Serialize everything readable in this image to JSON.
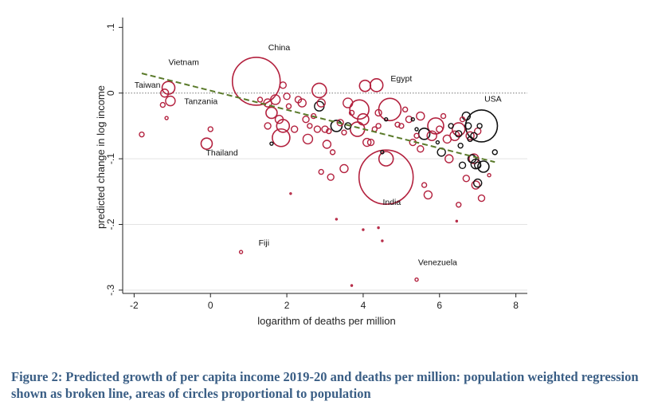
{
  "chart_data": {
    "type": "scatter",
    "xlabel": "logarithm of deaths per million",
    "ylabel": "predicted change in log income",
    "xlim": [
      -2.3,
      8.3
    ],
    "ylim": [
      -0.305,
      0.115
    ],
    "x_ticks": [
      {
        "value": -2,
        "label": "-2"
      },
      {
        "value": 0,
        "label": "0"
      },
      {
        "value": 2,
        "label": "2"
      },
      {
        "value": 4,
        "label": "4"
      },
      {
        "value": 6,
        "label": "6"
      },
      {
        "value": 8,
        "label": "8"
      }
    ],
    "y_ticks": [
      {
        "value": 0.1,
        "label": ".1"
      },
      {
        "value": 0,
        "label": "0"
      },
      {
        "value": -0.1,
        "label": "-.1"
      },
      {
        "value": -0.2,
        "label": "-.2"
      },
      {
        "value": -0.3,
        "label": "-.3"
      }
    ],
    "grid_y": [
      -0.1,
      -0.2,
      -0.3
    ],
    "reference_line_y": 0,
    "regression_line": {
      "style": "dashed",
      "color": "#5a7a2a",
      "x": [
        -1.8,
        7.45
      ],
      "y": [
        0.03,
        -0.105
      ]
    },
    "annotations": [
      {
        "text": "China",
        "x": 1.8,
        "y": 0.065
      },
      {
        "text": "Vietnam",
        "x": -0.7,
        "y": 0.043
      },
      {
        "text": "Taiwan",
        "x": -1.65,
        "y": 0.008
      },
      {
        "text": "Tanzania",
        "x": -0.25,
        "y": -0.017
      },
      {
        "text": "Thailand",
        "x": 0.3,
        "y": -0.095
      },
      {
        "text": "Egypt",
        "x": 5.0,
        "y": 0.018
      },
      {
        "text": "USA",
        "x": 7.4,
        "y": -0.013
      },
      {
        "text": "India",
        "x": 4.75,
        "y": -0.17
      },
      {
        "text": "Fiji",
        "x": 1.4,
        "y": -0.232
      },
      {
        "text": "Venezuela",
        "x": 5.95,
        "y": -0.262
      }
    ],
    "points": [
      {
        "x": 1.2,
        "y": 0.018,
        "r": 30,
        "c": "red"
      },
      {
        "x": 4.6,
        "y": -0.128,
        "r": 34,
        "c": "red"
      },
      {
        "x": -1.1,
        "y": 0.008,
        "r": 8,
        "c": "red"
      },
      {
        "x": -1.2,
        "y": 0.0,
        "r": 5,
        "c": "red"
      },
      {
        "x": -1.05,
        "y": -0.012,
        "r": 6,
        "c": "red"
      },
      {
        "x": -1.25,
        "y": -0.018,
        "r": 3,
        "c": "red"
      },
      {
        "x": -1.15,
        "y": -0.038,
        "r": 2,
        "c": "red"
      },
      {
        "x": -1.8,
        "y": -0.063,
        "r": 3,
        "c": "red"
      },
      {
        "x": 0.0,
        "y": -0.055,
        "r": 3,
        "c": "red"
      },
      {
        "x": -0.1,
        "y": -0.077,
        "r": 7,
        "c": "red"
      },
      {
        "x": 0.8,
        "y": -0.242,
        "r": 2,
        "c": "red"
      },
      {
        "x": 1.3,
        "y": -0.01,
        "r": 3,
        "c": "red"
      },
      {
        "x": 1.5,
        "y": -0.015,
        "r": 5,
        "c": "red"
      },
      {
        "x": 1.6,
        "y": -0.03,
        "r": 7,
        "c": "red"
      },
      {
        "x": 1.5,
        "y": -0.05,
        "r": 4,
        "c": "red"
      },
      {
        "x": 1.7,
        "y": -0.01,
        "r": 6,
        "c": "red"
      },
      {
        "x": 1.9,
        "y": 0.012,
        "r": 4,
        "c": "red"
      },
      {
        "x": 1.8,
        "y": -0.04,
        "r": 5,
        "c": "red"
      },
      {
        "x": 1.85,
        "y": -0.068,
        "r": 11,
        "c": "red"
      },
      {
        "x": 1.9,
        "y": -0.05,
        "r": 8,
        "c": "red"
      },
      {
        "x": 2.0,
        "y": -0.005,
        "r": 4,
        "c": "red"
      },
      {
        "x": 2.05,
        "y": -0.02,
        "r": 3,
        "c": "red"
      },
      {
        "x": 2.2,
        "y": -0.055,
        "r": 4,
        "c": "red"
      },
      {
        "x": 2.3,
        "y": -0.01,
        "r": 4,
        "c": "red"
      },
      {
        "x": 2.4,
        "y": -0.015,
        "r": 5,
        "c": "red"
      },
      {
        "x": 2.5,
        "y": -0.04,
        "r": 4,
        "c": "red"
      },
      {
        "x": 2.6,
        "y": -0.05,
        "r": 3,
        "c": "red"
      },
      {
        "x": 2.55,
        "y": -0.07,
        "r": 6,
        "c": "red"
      },
      {
        "x": 2.7,
        "y": -0.035,
        "r": 3,
        "c": "red"
      },
      {
        "x": 2.8,
        "y": -0.055,
        "r": 4,
        "c": "red"
      },
      {
        "x": 2.85,
        "y": 0.004,
        "r": 9,
        "c": "red"
      },
      {
        "x": 2.9,
        "y": -0.015,
        "r": 5,
        "c": "red"
      },
      {
        "x": 3.0,
        "y": -0.055,
        "r": 4,
        "c": "red"
      },
      {
        "x": 3.05,
        "y": -0.078,
        "r": 5,
        "c": "red"
      },
      {
        "x": 3.1,
        "y": -0.058,
        "r": 3,
        "c": "red"
      },
      {
        "x": 3.2,
        "y": -0.09,
        "r": 3,
        "c": "red"
      },
      {
        "x": 2.9,
        "y": -0.12,
        "r": 3,
        "c": "red"
      },
      {
        "x": 3.15,
        "y": -0.128,
        "r": 4,
        "c": "red"
      },
      {
        "x": 3.4,
        "y": -0.045,
        "r": 4,
        "c": "red"
      },
      {
        "x": 3.5,
        "y": -0.06,
        "r": 3,
        "c": "red"
      },
      {
        "x": 3.6,
        "y": -0.015,
        "r": 6,
        "c": "red"
      },
      {
        "x": 3.7,
        "y": -0.03,
        "r": 3,
        "c": "red"
      },
      {
        "x": 3.5,
        "y": -0.115,
        "r": 5,
        "c": "red"
      },
      {
        "x": 3.9,
        "y": -0.025,
        "r": 12,
        "c": "red"
      },
      {
        "x": 3.85,
        "y": -0.055,
        "r": 9,
        "c": "red"
      },
      {
        "x": 4.0,
        "y": -0.04,
        "r": 7,
        "c": "red"
      },
      {
        "x": 4.05,
        "y": 0.011,
        "r": 7,
        "c": "red"
      },
      {
        "x": 4.1,
        "y": -0.075,
        "r": 5,
        "c": "red"
      },
      {
        "x": 4.2,
        "y": -0.075,
        "r": 4,
        "c": "red"
      },
      {
        "x": 4.3,
        "y": -0.055,
        "r": 3,
        "c": "red"
      },
      {
        "x": 4.4,
        "y": -0.03,
        "r": 4,
        "c": "red"
      },
      {
        "x": 4.35,
        "y": 0.012,
        "r": 8,
        "c": "red"
      },
      {
        "x": 4.4,
        "y": -0.05,
        "r": 3,
        "c": "red"
      },
      {
        "x": 4.6,
        "y": -0.1,
        "r": 9,
        "c": "red"
      },
      {
        "x": 4.4,
        "y": -0.205,
        "r": 1,
        "c": "red"
      },
      {
        "x": 3.3,
        "y": -0.192,
        "r": 1,
        "c": "red"
      },
      {
        "x": 3.7,
        "y": -0.293,
        "r": 1,
        "c": "red"
      },
      {
        "x": 4.0,
        "y": -0.208,
        "r": 1,
        "c": "red"
      },
      {
        "x": 4.5,
        "y": -0.225,
        "r": 1,
        "c": "red"
      },
      {
        "x": 4.7,
        "y": -0.025,
        "r": 14,
        "c": "red"
      },
      {
        "x": 4.9,
        "y": -0.048,
        "r": 3,
        "c": "red"
      },
      {
        "x": 5.0,
        "y": -0.05,
        "r": 3,
        "c": "red"
      },
      {
        "x": 5.1,
        "y": -0.025,
        "r": 3,
        "c": "red"
      },
      {
        "x": 5.2,
        "y": -0.04,
        "r": 4,
        "c": "red"
      },
      {
        "x": 5.3,
        "y": -0.075,
        "r": 4,
        "c": "red"
      },
      {
        "x": 5.4,
        "y": -0.065,
        "r": 3,
        "c": "red"
      },
      {
        "x": 5.5,
        "y": -0.035,
        "r": 5,
        "c": "red"
      },
      {
        "x": 5.5,
        "y": -0.085,
        "r": 4,
        "c": "red"
      },
      {
        "x": 5.6,
        "y": -0.14,
        "r": 3,
        "c": "red"
      },
      {
        "x": 5.7,
        "y": -0.155,
        "r": 5,
        "c": "red"
      },
      {
        "x": 5.8,
        "y": -0.065,
        "r": 6,
        "c": "red"
      },
      {
        "x": 5.9,
        "y": -0.05,
        "r": 10,
        "c": "red"
      },
      {
        "x": 6.0,
        "y": -0.055,
        "r": 4,
        "c": "red"
      },
      {
        "x": 6.1,
        "y": -0.035,
        "r": 3,
        "c": "red"
      },
      {
        "x": 6.2,
        "y": -0.07,
        "r": 5,
        "c": "red"
      },
      {
        "x": 6.25,
        "y": -0.1,
        "r": 5,
        "c": "red"
      },
      {
        "x": 6.4,
        "y": -0.065,
        "r": 6,
        "c": "red"
      },
      {
        "x": 6.5,
        "y": -0.055,
        "r": 8,
        "c": "red"
      },
      {
        "x": 6.5,
        "y": -0.17,
        "r": 3,
        "c": "red"
      },
      {
        "x": 6.6,
        "y": -0.04,
        "r": 3,
        "c": "red"
      },
      {
        "x": 6.7,
        "y": -0.13,
        "r": 4,
        "c": "red"
      },
      {
        "x": 6.8,
        "y": -0.065,
        "r": 5,
        "c": "red"
      },
      {
        "x": 6.9,
        "y": -0.1,
        "r": 6,
        "c": "red"
      },
      {
        "x": 6.95,
        "y": -0.14,
        "r": 5,
        "c": "red"
      },
      {
        "x": 7.0,
        "y": -0.058,
        "r": 4,
        "c": "red"
      },
      {
        "x": 7.1,
        "y": -0.16,
        "r": 4,
        "c": "red"
      },
      {
        "x": 7.3,
        "y": -0.125,
        "r": 2,
        "c": "red"
      },
      {
        "x": 6.45,
        "y": -0.195,
        "r": 1,
        "c": "red"
      },
      {
        "x": 5.4,
        "y": -0.284,
        "r": 2,
        "c": "red"
      },
      {
        "x": 2.1,
        "y": -0.153,
        "r": 1,
        "c": "red"
      },
      {
        "x": 1.6,
        "y": -0.077,
        "r": 2,
        "c": "black"
      },
      {
        "x": 2.85,
        "y": -0.02,
        "r": 6,
        "c": "black"
      },
      {
        "x": 3.3,
        "y": -0.05,
        "r": 7,
        "c": "black"
      },
      {
        "x": 3.6,
        "y": -0.05,
        "r": 4,
        "c": "black"
      },
      {
        "x": 4.6,
        "y": -0.04,
        "r": 2,
        "c": "black"
      },
      {
        "x": 4.5,
        "y": -0.09,
        "r": 2,
        "c": "black"
      },
      {
        "x": 5.3,
        "y": -0.04,
        "r": 2,
        "c": "black"
      },
      {
        "x": 5.4,
        "y": -0.055,
        "r": 2,
        "c": "black"
      },
      {
        "x": 5.6,
        "y": -0.062,
        "r": 7,
        "c": "black"
      },
      {
        "x": 5.95,
        "y": -0.075,
        "r": 2,
        "c": "black"
      },
      {
        "x": 6.05,
        "y": -0.09,
        "r": 5,
        "c": "black"
      },
      {
        "x": 6.3,
        "y": -0.05,
        "r": 3,
        "c": "black"
      },
      {
        "x": 6.5,
        "y": -0.062,
        "r": 4,
        "c": "black"
      },
      {
        "x": 6.55,
        "y": -0.08,
        "r": 3,
        "c": "black"
      },
      {
        "x": 6.6,
        "y": -0.11,
        "r": 4,
        "c": "black"
      },
      {
        "x": 6.7,
        "y": -0.035,
        "r": 5,
        "c": "black"
      },
      {
        "x": 6.75,
        "y": -0.05,
        "r": 4,
        "c": "black"
      },
      {
        "x": 6.8,
        "y": -0.07,
        "r": 3,
        "c": "black"
      },
      {
        "x": 6.85,
        "y": -0.1,
        "r": 5,
        "c": "black"
      },
      {
        "x": 6.9,
        "y": -0.065,
        "r": 4,
        "c": "black"
      },
      {
        "x": 6.95,
        "y": -0.108,
        "r": 6,
        "c": "black"
      },
      {
        "x": 7.0,
        "y": -0.11,
        "r": 4,
        "c": "black"
      },
      {
        "x": 7.05,
        "y": -0.05,
        "r": 3,
        "c": "black"
      },
      {
        "x": 7.1,
        "y": -0.05,
        "r": 20,
        "c": "black"
      },
      {
        "x": 7.0,
        "y": -0.137,
        "r": 5,
        "c": "black"
      },
      {
        "x": 7.15,
        "y": -0.112,
        "r": 7,
        "c": "black"
      },
      {
        "x": 7.45,
        "y": -0.09,
        "r": 3,
        "c": "black"
      }
    ]
  },
  "caption": "Figure 2: Predicted growth of per capita income 2019-20 and deaths per million: population weighted regression shown as broken line, areas of circles proportional to population"
}
